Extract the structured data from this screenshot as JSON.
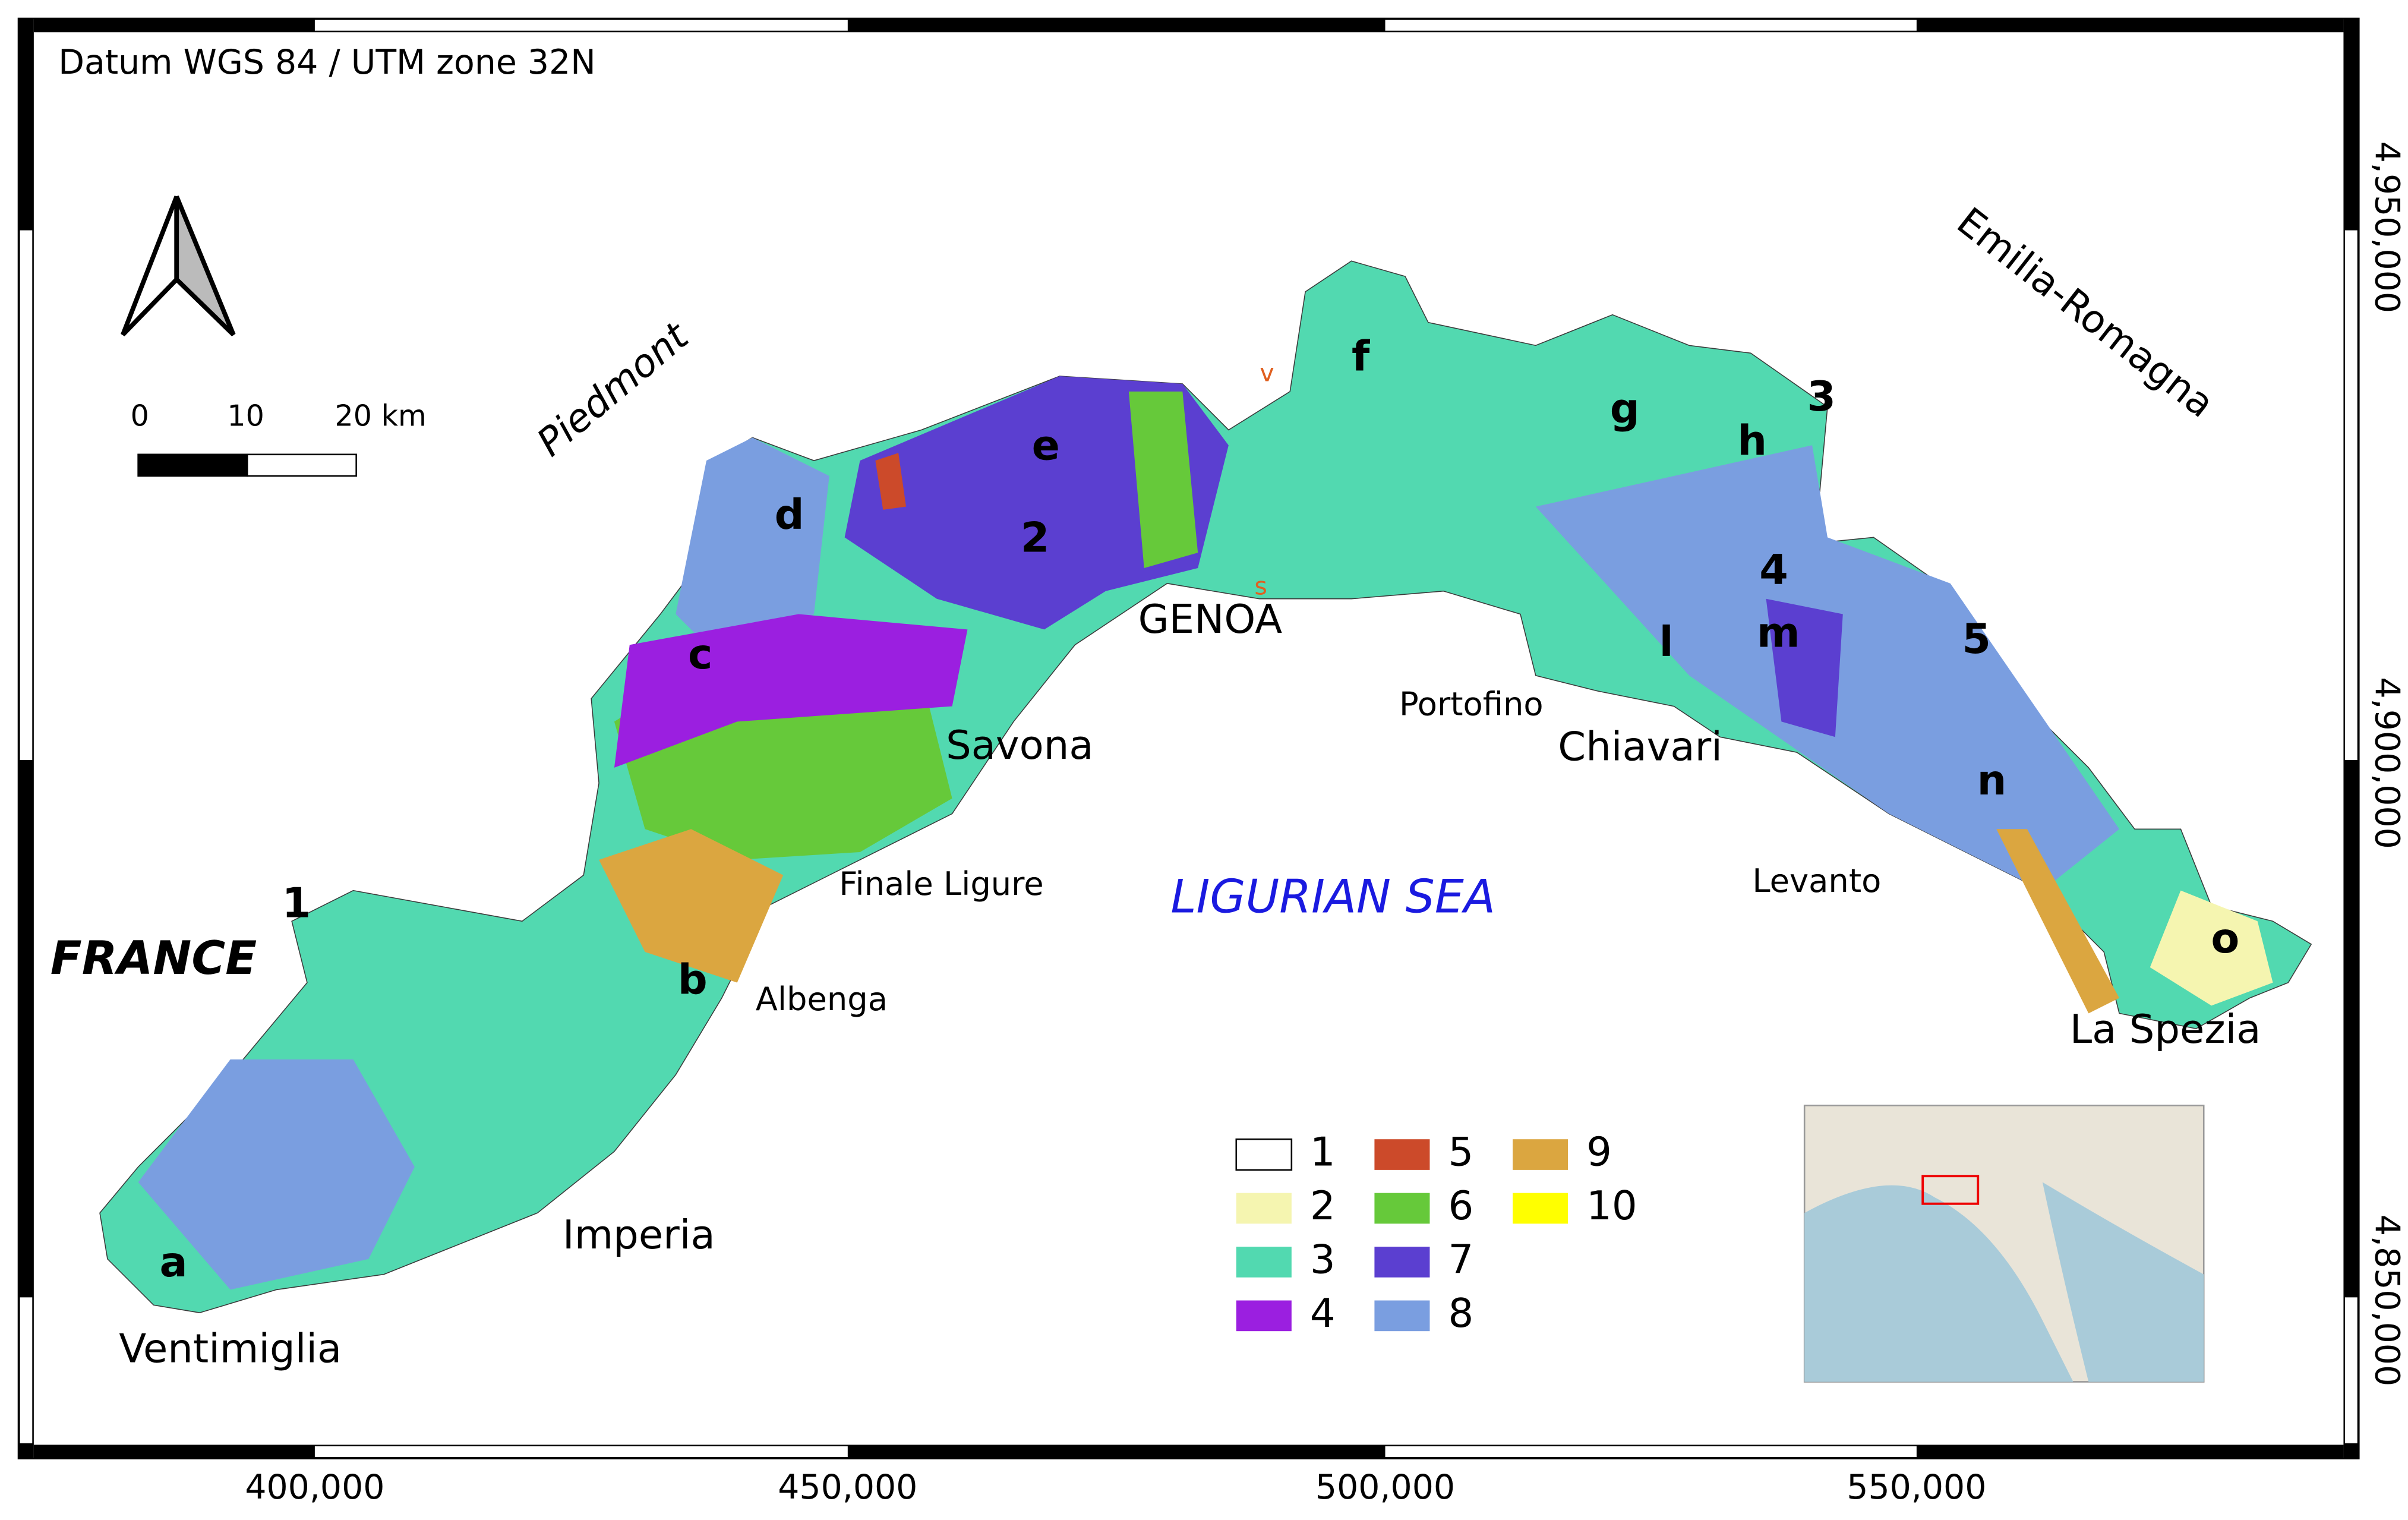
{
  "datum": "Datum WGS 84 / UTM zone 32N",
  "scale_bar": [
    "0",
    "10",
    "20 km"
  ],
  "x_ticks": [
    "400,000",
    "450,000",
    "500,000",
    "550,000"
  ],
  "y_ticks": [
    "4,950,000",
    "4,900,000",
    "4,850,000"
  ],
  "regions": [
    "Piedmont",
    "Emilia-Romagna"
  ],
  "country": "FRANCE",
  "sea": "LIGURIAN SEA",
  "cities": [
    "GENOA",
    "Savona",
    "Finale Ligure",
    "Albenga",
    "Imperia",
    "Ventimiglia",
    "Portofino",
    "Chiavari",
    "Levanto",
    "La Spezia"
  ],
  "site_letters": [
    "a",
    "b",
    "c",
    "d",
    "e",
    "f",
    "g",
    "h",
    "l",
    "m",
    "n",
    "o"
  ],
  "marker_letters": [
    "v",
    "s"
  ],
  "zone_numbers": [
    "1",
    "2",
    "3",
    "4",
    "5"
  ],
  "legend": [
    {
      "label": "1",
      "color": "#ffffff"
    },
    {
      "label": "2",
      "color": "#f5f5b0"
    },
    {
      "label": "3",
      "color": "#52d9b0"
    },
    {
      "label": "4",
      "color": "#9b1fe0"
    },
    {
      "label": "5",
      "color": "#cc4a2a"
    },
    {
      "label": "6",
      "color": "#66c93a"
    },
    {
      "label": "7",
      "color": "#5b3fd0"
    },
    {
      "label": "8",
      "color": "#7a9ee0"
    },
    {
      "label": "9",
      "color": "#dba640"
    },
    {
      "label": "10",
      "color": "#ffff00"
    }
  ]
}
